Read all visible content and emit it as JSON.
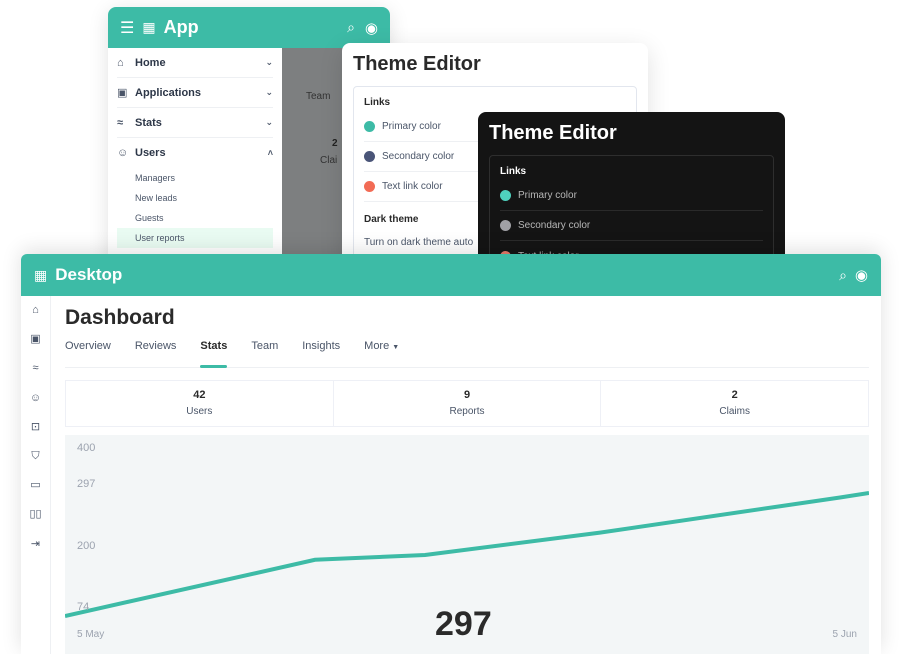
{
  "app": {
    "title": "App",
    "nav": [
      {
        "label": "Home",
        "icon": "home-icon"
      },
      {
        "label": "Applications",
        "icon": "applications-icon"
      },
      {
        "label": "Stats",
        "icon": "stats-icon"
      },
      {
        "label": "Users",
        "icon": "users-icon"
      }
    ],
    "sub": [
      "Managers",
      "New leads",
      "Guests",
      "User reports"
    ],
    "bg_text": {
      "team": "Team",
      "num": "2",
      "claims": "Clai"
    }
  },
  "theme_light": {
    "title": "Theme Editor",
    "section": "Links",
    "items": [
      {
        "label": "Primary color",
        "color": "#3dbba6"
      },
      {
        "label": "Secondary color",
        "color": "#4a5578"
      },
      {
        "label": "Text link color",
        "color": "#f26b55"
      }
    ],
    "dark_section": "Dark theme",
    "dark_text": "Turn on dark theme auto"
  },
  "theme_dark": {
    "title": "Theme Editor",
    "section": "Links",
    "items": [
      {
        "label": "Primary color",
        "color": "#4fd1be"
      },
      {
        "label": "Secondary color",
        "color": "#a0a0a5"
      },
      {
        "label": "Text link color",
        "color": "#e7796a"
      }
    ]
  },
  "desktop": {
    "title": "Desktop",
    "page_title": "Dashboard",
    "tabs": [
      "Overview",
      "Reviews",
      "Stats",
      "Team",
      "Insights",
      "More"
    ],
    "active_tab": "Stats",
    "stats": [
      {
        "value": "42",
        "label": "Users"
      },
      {
        "value": "9",
        "label": "Reports"
      },
      {
        "value": "2",
        "label": "Claims"
      }
    ],
    "highlight": "297"
  },
  "chart_data": {
    "type": "line",
    "y_ticks": [
      "400",
      "297",
      "200",
      "74"
    ],
    "x_labels": [
      "5 May",
      "5 Jun"
    ],
    "series": [
      {
        "values": [
          74,
          190,
          200,
          235,
          290,
          297
        ]
      }
    ],
    "color": "#3dbba6"
  }
}
